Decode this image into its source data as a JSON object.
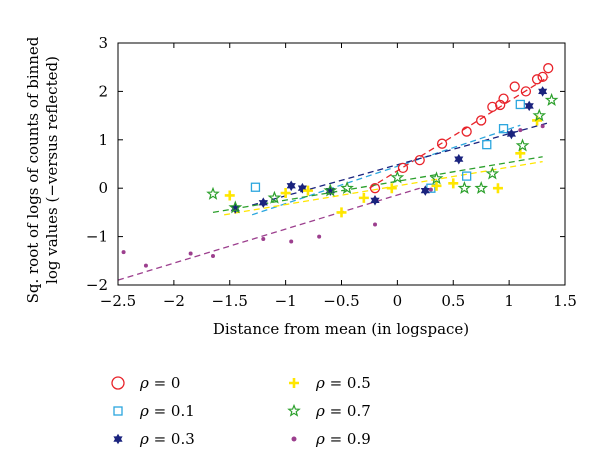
{
  "chart_data": {
    "type": "scatter",
    "title": "",
    "xlabel": "Distance from mean (in logspace)",
    "ylabel_lines": [
      "Sq. root of logs of counts of binned",
      "log values (−versus reflected)"
    ],
    "xlim": [
      -2.5,
      1.5
    ],
    "ylim": [
      -2,
      3
    ],
    "xticks": [
      -2.5,
      -2,
      -1.5,
      -1,
      -0.5,
      0,
      0.5,
      1,
      1.5
    ],
    "xtick_labels": [
      "−2.5",
      "−2",
      "−1.5",
      "−1",
      "−0.5",
      "0",
      "0.5",
      "1",
      "1.5"
    ],
    "yticks": [
      -2,
      -1,
      0,
      1,
      2,
      3
    ],
    "ytick_labels": [
      "−2",
      "−1",
      "0",
      "1",
      "2",
      "3"
    ],
    "grid": false,
    "legend_position": "bottom",
    "series": [
      {
        "name": "ρ = 0",
        "legend_symbol": "ρ",
        "legend_value": "= 0",
        "marker": "circle",
        "color": "#e8232a",
        "points": [
          [
            -0.2,
            0.0
          ],
          [
            0.05,
            0.42
          ],
          [
            0.2,
            0.58
          ],
          [
            0.4,
            0.92
          ],
          [
            0.62,
            1.17
          ],
          [
            0.75,
            1.4
          ],
          [
            0.85,
            1.68
          ],
          [
            0.92,
            1.72
          ],
          [
            0.95,
            1.85
          ],
          [
            1.05,
            2.1
          ],
          [
            1.15,
            2.0
          ],
          [
            1.25,
            2.25
          ],
          [
            1.3,
            2.3
          ],
          [
            1.35,
            2.48
          ]
        ],
        "fit": [
          [
            -0.25,
            0.0
          ],
          [
            1.35,
            2.3
          ]
        ]
      },
      {
        "name": "ρ = 0.1",
        "legend_symbol": "ρ",
        "legend_value": "= 0.1",
        "marker": "square",
        "color": "#2ba6de",
        "points": [
          [
            -1.27,
            0.02
          ],
          [
            0.3,
            0.0
          ],
          [
            0.62,
            0.25
          ],
          [
            0.8,
            0.9
          ],
          [
            0.95,
            1.23
          ],
          [
            1.1,
            1.73
          ]
        ],
        "fit": [
          [
            -1.3,
            -0.55
          ],
          [
            1.1,
            1.3
          ]
        ]
      },
      {
        "name": "ρ = 0.3",
        "legend_symbol": "ρ",
        "legend_value": "= 0.3",
        "marker": "star6",
        "color": "#1a237e",
        "points": [
          [
            -1.45,
            -0.42
          ],
          [
            -1.2,
            -0.3
          ],
          [
            -0.95,
            0.05
          ],
          [
            -0.85,
            0.0
          ],
          [
            -0.6,
            -0.05
          ],
          [
            -0.2,
            -0.25
          ],
          [
            0.25,
            -0.05
          ],
          [
            0.55,
            0.6
          ],
          [
            1.02,
            1.12
          ],
          [
            1.18,
            1.7
          ],
          [
            1.3,
            2.0
          ]
        ],
        "fit": [
          [
            -1.3,
            -0.35
          ],
          [
            1.35,
            1.35
          ]
        ]
      },
      {
        "name": "ρ = 0.5",
        "legend_symbol": "ρ",
        "legend_value": "= 0.5",
        "marker": "plus",
        "color": "#ffe600",
        "points": [
          [
            -1.5,
            -0.15
          ],
          [
            -1.0,
            -0.1
          ],
          [
            -0.8,
            -0.05
          ],
          [
            -0.5,
            -0.5
          ],
          [
            -0.3,
            -0.2
          ],
          [
            -0.05,
            0.0
          ],
          [
            0.35,
            0.05
          ],
          [
            0.5,
            0.1
          ],
          [
            0.9,
            0.0
          ],
          [
            1.1,
            0.72
          ],
          [
            1.25,
            1.4
          ]
        ],
        "fit": [
          [
            -1.55,
            -0.55
          ],
          [
            1.3,
            0.55
          ]
        ]
      },
      {
        "name": "ρ = 0.7",
        "legend_symbol": "ρ",
        "legend_value": "= 0.7",
        "marker": "star5",
        "color": "#2ca02c",
        "points": [
          [
            -1.65,
            -0.12
          ],
          [
            -1.45,
            -0.4
          ],
          [
            -1.1,
            -0.2
          ],
          [
            -0.6,
            -0.05
          ],
          [
            -0.45,
            0.0
          ],
          [
            0.0,
            0.22
          ],
          [
            0.35,
            0.2
          ],
          [
            0.6,
            0.0
          ],
          [
            0.75,
            0.0
          ],
          [
            0.85,
            0.3
          ],
          [
            1.12,
            0.88
          ],
          [
            1.27,
            1.5
          ],
          [
            1.38,
            1.82
          ]
        ],
        "fit": [
          [
            -1.65,
            -0.5
          ],
          [
            1.3,
            0.65
          ]
        ]
      },
      {
        "name": "ρ = 0.9",
        "legend_symbol": "ρ",
        "legend_value": "= 0.9",
        "marker": "dot",
        "color": "#9c3f8e",
        "points": [
          [
            -2.45,
            -1.32
          ],
          [
            -2.25,
            -1.6
          ],
          [
            -1.85,
            -1.35
          ],
          [
            -1.65,
            -1.4
          ],
          [
            -1.2,
            -1.05
          ],
          [
            -0.95,
            -1.1
          ],
          [
            -0.7,
            -1.0
          ],
          [
            -0.2,
            -0.75
          ],
          [
            0.3,
            -0.03
          ],
          [
            1.1,
            1.2
          ],
          [
            1.3,
            1.28
          ]
        ],
        "fit": [
          [
            -2.5,
            -1.9
          ],
          [
            0.2,
            0.0
          ]
        ]
      }
    ]
  }
}
